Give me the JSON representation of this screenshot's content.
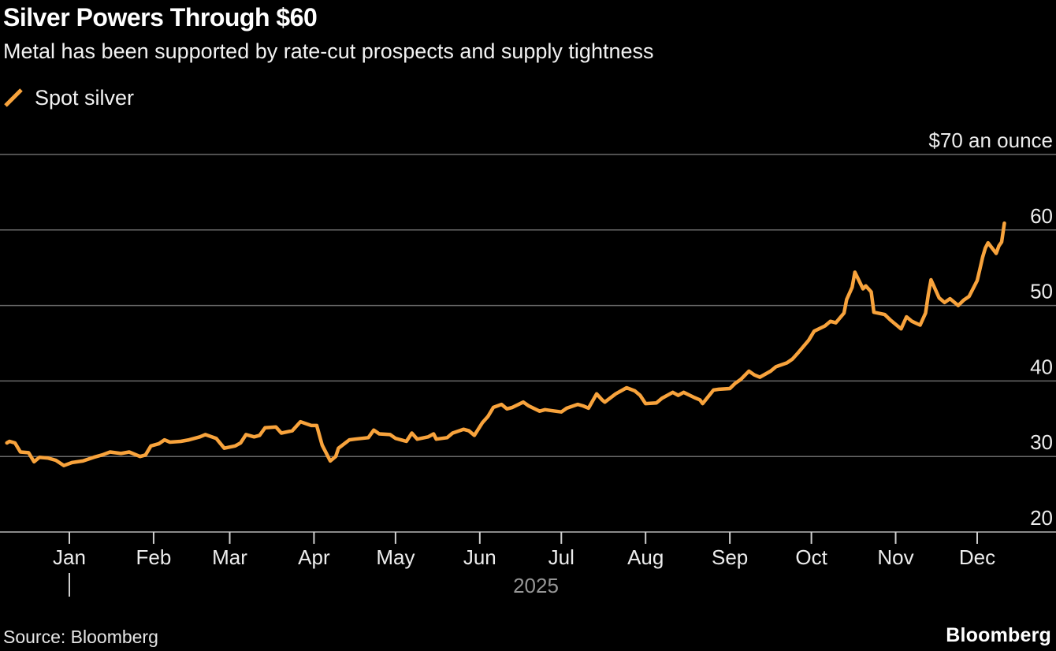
{
  "header": {
    "title": "Silver Powers Through $60",
    "subtitle": "Metal has been supported by rate-cut prospects and supply tightness"
  },
  "legend": {
    "label": "Spot silver",
    "swatch_color": "#F8A33C"
  },
  "footer": {
    "source": "Source: Bloomberg",
    "logo": "Bloomberg"
  },
  "colors": {
    "background": "#000000",
    "line": "#F8A33C",
    "gridline": "#6a6a6a",
    "axis": "#8a8a8a",
    "tick": "#cfcfcf",
    "axis_text": "#ededed",
    "year_text": "#969696"
  },
  "chart_data": {
    "type": "line",
    "title": "Silver Powers Through $60",
    "ylabel": "$70 an ounce",
    "ylim": [
      20,
      70
    ],
    "grid": true,
    "legend_position": "top-left",
    "y_axis": {
      "min": 20,
      "max": 70,
      "ticks": [
        {
          "value": 70,
          "label": "$70 an ounce"
        },
        {
          "value": 60,
          "label": "60"
        },
        {
          "value": 50,
          "label": "50"
        },
        {
          "value": 40,
          "label": "40"
        },
        {
          "value": 30,
          "label": "30"
        },
        {
          "value": 20,
          "label": "20"
        }
      ]
    },
    "x_axis": {
      "ticks": [
        {
          "date": "2025-01-01",
          "label": "Jan"
        },
        {
          "date": "2025-02-01",
          "label": "Feb"
        },
        {
          "date": "2025-03-01",
          "label": "Mar"
        },
        {
          "date": "2025-04-01",
          "label": "Apr"
        },
        {
          "date": "2025-05-01",
          "label": "May"
        },
        {
          "date": "2025-06-01",
          "label": "Jun"
        },
        {
          "date": "2025-07-01",
          "label": "Jul"
        },
        {
          "date": "2025-08-01",
          "label": "Aug"
        },
        {
          "date": "2025-09-01",
          "label": "Sep"
        },
        {
          "date": "2025-10-01",
          "label": "Oct"
        },
        {
          "date": "2025-11-01",
          "label": "Nov"
        },
        {
          "date": "2025-12-01",
          "label": "Dec"
        }
      ],
      "year_label": "2025",
      "year_tick_date": "2025-01-01"
    },
    "series": [
      {
        "name": "Spot silver",
        "color": "#F8A33C",
        "points": [
          [
            "2024-12-09",
            31.8
          ],
          [
            "2024-12-10",
            32.0
          ],
          [
            "2024-12-12",
            31.8
          ],
          [
            "2024-12-14",
            30.6
          ],
          [
            "2024-12-17",
            30.5
          ],
          [
            "2024-12-19",
            29.3
          ],
          [
            "2024-12-21",
            29.9
          ],
          [
            "2024-12-24",
            29.8
          ],
          [
            "2024-12-27",
            29.5
          ],
          [
            "2024-12-30",
            28.8
          ],
          [
            "2025-01-02",
            29.2
          ],
          [
            "2025-01-06",
            29.4
          ],
          [
            "2025-01-10",
            29.9
          ],
          [
            "2025-01-13",
            30.2
          ],
          [
            "2025-01-16",
            30.6
          ],
          [
            "2025-01-20",
            30.4
          ],
          [
            "2025-01-23",
            30.6
          ],
          [
            "2025-01-27",
            30.0
          ],
          [
            "2025-01-29",
            30.2
          ],
          [
            "2025-01-31",
            31.4
          ],
          [
            "2025-02-03",
            31.7
          ],
          [
            "2025-02-05",
            32.2
          ],
          [
            "2025-02-07",
            31.9
          ],
          [
            "2025-02-11",
            32.0
          ],
          [
            "2025-02-14",
            32.2
          ],
          [
            "2025-02-18",
            32.6
          ],
          [
            "2025-02-20",
            32.9
          ],
          [
            "2025-02-24",
            32.4
          ],
          [
            "2025-02-27",
            31.1
          ],
          [
            "2025-03-03",
            31.4
          ],
          [
            "2025-03-05",
            31.8
          ],
          [
            "2025-03-07",
            32.9
          ],
          [
            "2025-03-10",
            32.6
          ],
          [
            "2025-03-12",
            32.8
          ],
          [
            "2025-03-14",
            33.8
          ],
          [
            "2025-03-18",
            33.9
          ],
          [
            "2025-03-20",
            33.1
          ],
          [
            "2025-03-24",
            33.4
          ],
          [
            "2025-03-27",
            34.6
          ],
          [
            "2025-03-31",
            34.1
          ],
          [
            "2025-04-02",
            34.1
          ],
          [
            "2025-04-04",
            31.5
          ],
          [
            "2025-04-07",
            29.4
          ],
          [
            "2025-04-09",
            30.0
          ],
          [
            "2025-04-10",
            31.1
          ],
          [
            "2025-04-14",
            32.2
          ],
          [
            "2025-04-16",
            32.3
          ],
          [
            "2025-04-21",
            32.5
          ],
          [
            "2025-04-23",
            33.5
          ],
          [
            "2025-04-25",
            33.0
          ],
          [
            "2025-04-29",
            32.9
          ],
          [
            "2025-05-01",
            32.4
          ],
          [
            "2025-05-05",
            32.0
          ],
          [
            "2025-05-07",
            33.1
          ],
          [
            "2025-05-09",
            32.3
          ],
          [
            "2025-05-13",
            32.6
          ],
          [
            "2025-05-15",
            33.0
          ],
          [
            "2025-05-16",
            32.3
          ],
          [
            "2025-05-20",
            32.5
          ],
          [
            "2025-05-22",
            33.1
          ],
          [
            "2025-05-26",
            33.6
          ],
          [
            "2025-05-28",
            33.4
          ],
          [
            "2025-05-30",
            32.8
          ],
          [
            "2025-06-02",
            34.5
          ],
          [
            "2025-06-04",
            35.3
          ],
          [
            "2025-06-06",
            36.5
          ],
          [
            "2025-06-09",
            36.9
          ],
          [
            "2025-06-11",
            36.3
          ],
          [
            "2025-06-13",
            36.5
          ],
          [
            "2025-06-17",
            37.2
          ],
          [
            "2025-06-19",
            36.7
          ],
          [
            "2025-06-23",
            36.0
          ],
          [
            "2025-06-25",
            36.2
          ],
          [
            "2025-06-27",
            36.1
          ],
          [
            "2025-07-01",
            35.9
          ],
          [
            "2025-07-03",
            36.4
          ],
          [
            "2025-07-07",
            36.9
          ],
          [
            "2025-07-09",
            36.7
          ],
          [
            "2025-07-11",
            36.4
          ],
          [
            "2025-07-14",
            38.3
          ],
          [
            "2025-07-16",
            37.5
          ],
          [
            "2025-07-17",
            37.2
          ],
          [
            "2025-07-21",
            38.3
          ],
          [
            "2025-07-23",
            38.7
          ],
          [
            "2025-07-25",
            39.1
          ],
          [
            "2025-07-28",
            38.7
          ],
          [
            "2025-07-30",
            38.1
          ],
          [
            "2025-08-01",
            37.0
          ],
          [
            "2025-08-05",
            37.1
          ],
          [
            "2025-08-07",
            37.7
          ],
          [
            "2025-08-11",
            38.5
          ],
          [
            "2025-08-13",
            38.1
          ],
          [
            "2025-08-15",
            38.5
          ],
          [
            "2025-08-19",
            37.8
          ],
          [
            "2025-08-21",
            37.5
          ],
          [
            "2025-08-22",
            37.0
          ],
          [
            "2025-08-26",
            38.8
          ],
          [
            "2025-08-28",
            38.9
          ],
          [
            "2025-09-01",
            39.0
          ],
          [
            "2025-09-03",
            39.7
          ],
          [
            "2025-09-05",
            40.2
          ],
          [
            "2025-09-08",
            41.3
          ],
          [
            "2025-09-10",
            40.8
          ],
          [
            "2025-09-12",
            40.5
          ],
          [
            "2025-09-16",
            41.3
          ],
          [
            "2025-09-18",
            41.9
          ],
          [
            "2025-09-22",
            42.4
          ],
          [
            "2025-09-24",
            42.9
          ],
          [
            "2025-09-26",
            43.7
          ],
          [
            "2025-09-30",
            45.4
          ],
          [
            "2025-10-02",
            46.6
          ],
          [
            "2025-10-06",
            47.3
          ],
          [
            "2025-10-08",
            47.9
          ],
          [
            "2025-10-10",
            47.7
          ],
          [
            "2025-10-13",
            49.0
          ],
          [
            "2025-10-14",
            50.8
          ],
          [
            "2025-10-16",
            52.4
          ],
          [
            "2025-10-17",
            54.4
          ],
          [
            "2025-10-20",
            52.2
          ],
          [
            "2025-10-21",
            52.6
          ],
          [
            "2025-10-23",
            51.8
          ],
          [
            "2025-10-24",
            49.1
          ],
          [
            "2025-10-28",
            48.8
          ],
          [
            "2025-10-30",
            48.1
          ],
          [
            "2025-11-03",
            46.9
          ],
          [
            "2025-11-05",
            48.5
          ],
          [
            "2025-11-07",
            47.9
          ],
          [
            "2025-11-10",
            47.4
          ],
          [
            "2025-11-12",
            49.0
          ],
          [
            "2025-11-13",
            51.4
          ],
          [
            "2025-11-14",
            53.4
          ],
          [
            "2025-11-17",
            51.0
          ],
          [
            "2025-11-19",
            50.4
          ],
          [
            "2025-11-21",
            50.9
          ],
          [
            "2025-11-24",
            50.0
          ],
          [
            "2025-11-26",
            50.7
          ],
          [
            "2025-11-28",
            51.2
          ],
          [
            "2025-12-01",
            53.3
          ],
          [
            "2025-12-02",
            54.8
          ],
          [
            "2025-12-03",
            56.4
          ],
          [
            "2025-12-04",
            57.6
          ],
          [
            "2025-12-05",
            58.3
          ],
          [
            "2025-12-08",
            56.9
          ],
          [
            "2025-12-09",
            57.9
          ],
          [
            "2025-12-10",
            58.4
          ],
          [
            "2025-12-11",
            60.9
          ]
        ]
      }
    ]
  }
}
